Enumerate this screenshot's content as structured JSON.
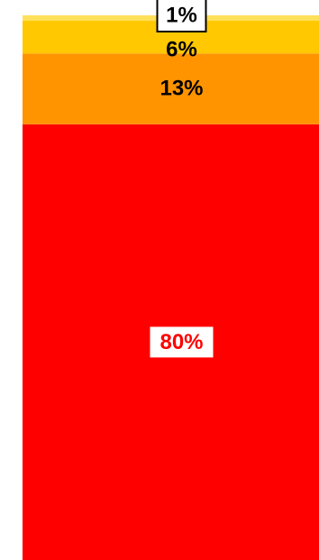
{
  "chart_data": {
    "type": "bar",
    "stacked": true,
    "categories": [
      ""
    ],
    "series": [
      {
        "label": "80%",
        "value": 80,
        "color": "#ff0000",
        "label_style": "boxed-white"
      },
      {
        "label": "13%",
        "value": 13,
        "color": "#ff9400",
        "label_style": "plain"
      },
      {
        "label": "6%",
        "value": 6,
        "color": "#ffc800",
        "label_style": "plain"
      },
      {
        "label": "1%",
        "value": 1,
        "color": "#ffe05a",
        "label_style": "boxed-white"
      }
    ],
    "ylim": [
      0,
      100
    ],
    "grid": false,
    "legend": "none"
  }
}
